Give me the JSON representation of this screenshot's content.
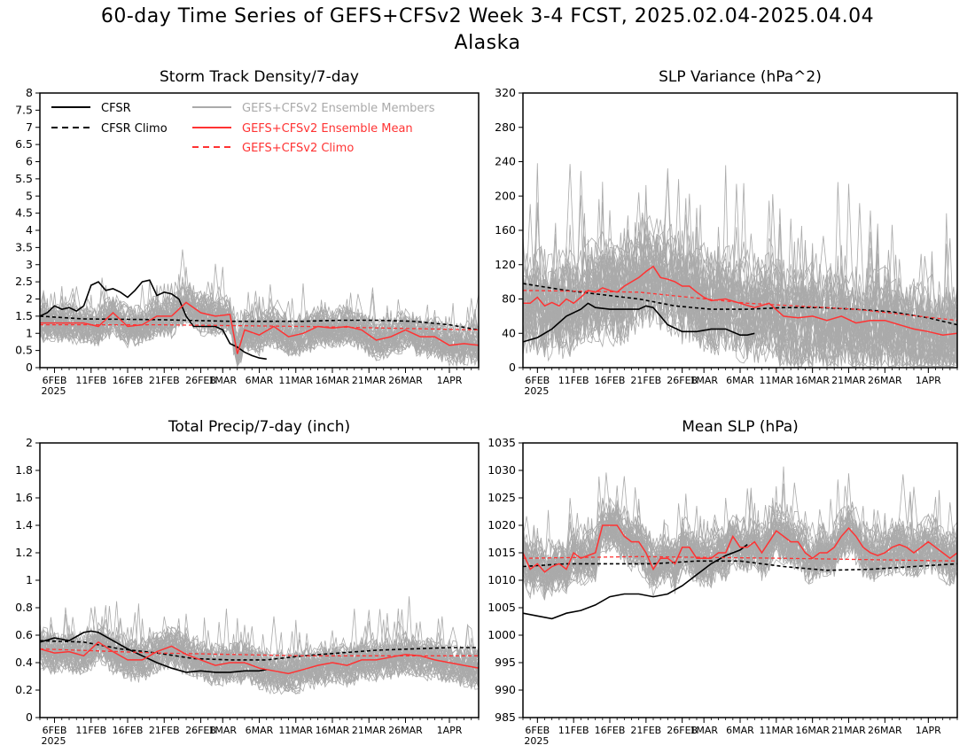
{
  "title_line1": "60-day Time Series of GEFS+CFSv2 Week 3-4 FCST, 2025.02.04-2025.04.04",
  "title_line2": "Alaska",
  "colors": {
    "cfsr": "#000000",
    "members": "#aaaaaa",
    "mean": "#ff3333",
    "gefs_climo": "#ff3333"
  },
  "legend": {
    "cfsr": "CFSR",
    "cfsr_climo": "CFSR Climo",
    "members": "GEFS+CFSv2 Ensemble Members",
    "mean": "GEFS+CFSv2 Ensemble Mean",
    "gefs_climo": "GEFS+CFSv2 Climo"
  },
  "chart_data": [
    {
      "type": "line",
      "title": "Storm Track Density/7-day",
      "ylim": [
        0,
        8
      ],
      "yticks": [
        "0",
        "0.5",
        "1",
        "1.5",
        "2",
        "2.5",
        "3",
        "3.5",
        "4",
        "4.5",
        "5",
        "5.5",
        "6",
        "6.5",
        "7",
        "7.5",
        "8"
      ],
      "xlim": [
        4,
        64
      ],
      "x_start_date": "2025-02-04",
      "xticks": [
        {
          "day": 6,
          "label": "6FEB"
        },
        {
          "day": 11,
          "label": "11FEB"
        },
        {
          "day": 16,
          "label": "16FEB"
        },
        {
          "day": 21,
          "label": "21FEB"
        },
        {
          "day": 26,
          "label": "26FEB"
        },
        {
          "day": 29,
          "label": "1MAR"
        },
        {
          "day": 34,
          "label": "6MAR"
        },
        {
          "day": 39,
          "label": "11MAR"
        },
        {
          "day": 44,
          "label": "16MAR"
        },
        {
          "day": 49,
          "label": "21MAR"
        },
        {
          "day": 54,
          "label": "26MAR"
        },
        {
          "day": 60,
          "label": "1APR"
        }
      ],
      "year_label": "2025",
      "series": [
        {
          "name": "CFSR",
          "x": [
            4,
            5,
            6,
            7,
            8,
            9,
            10,
            11,
            12,
            13,
            14,
            15,
            16,
            17,
            18,
            19,
            20,
            21,
            22,
            23,
            24,
            25,
            26,
            27,
            28,
            29,
            30,
            31,
            32,
            33,
            34,
            35
          ],
          "values": [
            1.5,
            1.6,
            1.8,
            1.7,
            1.75,
            1.65,
            1.8,
            2.4,
            2.5,
            2.25,
            2.3,
            2.2,
            2.05,
            2.25,
            2.5,
            2.55,
            2.1,
            2.2,
            2.15,
            2.0,
            1.5,
            1.2,
            1.2,
            1.2,
            1.2,
            1.1,
            0.7,
            0.6,
            0.45,
            0.35,
            0.28,
            0.25
          ]
        },
        {
          "name": "CFSR Climo",
          "x": [
            4,
            10,
            20,
            30,
            40,
            45,
            50,
            55,
            60,
            64
          ],
          "values": [
            1.5,
            1.42,
            1.4,
            1.35,
            1.35,
            1.38,
            1.38,
            1.35,
            1.25,
            1.1
          ]
        },
        {
          "name": "GEFS+CFSv2 Ensemble Mean",
          "x": [
            4,
            6,
            8,
            10,
            12,
            14,
            16,
            18,
            20,
            22,
            24,
            26,
            28,
            30,
            31,
            32,
            34,
            36,
            38,
            40,
            42,
            44,
            46,
            48,
            50,
            52,
            54,
            56,
            58,
            60,
            62,
            64
          ],
          "values": [
            1.3,
            1.3,
            1.3,
            1.3,
            1.2,
            1.6,
            1.2,
            1.25,
            1.5,
            1.5,
            1.9,
            1.6,
            1.5,
            1.55,
            0.4,
            1.1,
            0.95,
            1.2,
            0.9,
            1.0,
            1.2,
            1.15,
            1.2,
            1.1,
            0.8,
            0.9,
            1.1,
            0.9,
            0.9,
            0.65,
            0.7,
            0.65
          ]
        },
        {
          "name": "GEFS+CFSv2 Climo",
          "x": [
            4,
            20,
            40,
            64
          ],
          "values": [
            1.25,
            1.25,
            1.2,
            1.1
          ]
        }
      ]
    },
    {
      "type": "line",
      "title": "SLP Variance (hPa^2)",
      "ylim": [
        0,
        320
      ],
      "yticks": [
        "0",
        "40",
        "80",
        "120",
        "160",
        "200",
        "240",
        "280",
        "320"
      ],
      "xlim": [
        4,
        64
      ],
      "x_start_date": "2025-02-04",
      "xticks": [
        {
          "day": 6,
          "label": "6FEB"
        },
        {
          "day": 11,
          "label": "11FEB"
        },
        {
          "day": 16,
          "label": "16FEB"
        },
        {
          "day": 21,
          "label": "21FEB"
        },
        {
          "day": 26,
          "label": "26FEB"
        },
        {
          "day": 29,
          "label": "1MAR"
        },
        {
          "day": 34,
          "label": "6MAR"
        },
        {
          "day": 39,
          "label": "11MAR"
        },
        {
          "day": 44,
          "label": "16MAR"
        },
        {
          "day": 49,
          "label": "21MAR"
        },
        {
          "day": 54,
          "label": "26MAR"
        },
        {
          "day": 60,
          "label": "1APR"
        }
      ],
      "year_label": "2025",
      "series": [
        {
          "name": "CFSR",
          "x": [
            4,
            6,
            8,
            10,
            12,
            13,
            14,
            16,
            18,
            20,
            21,
            22,
            23,
            24,
            26,
            28,
            30,
            32,
            34,
            35,
            36
          ],
          "values": [
            30,
            35,
            45,
            60,
            68,
            75,
            70,
            68,
            68,
            68,
            72,
            70,
            60,
            50,
            42,
            42,
            45,
            45,
            38,
            38,
            40
          ]
        },
        {
          "name": "CFSR Climo",
          "x": [
            4,
            10,
            15,
            20,
            25,
            30,
            35,
            40,
            45,
            50,
            55,
            60,
            64
          ],
          "values": [
            98,
            90,
            85,
            80,
            72,
            68,
            68,
            70,
            70,
            68,
            65,
            58,
            50
          ]
        },
        {
          "name": "GEFS+CFSv2 Ensemble Mean",
          "x": [
            4,
            5,
            6,
            7,
            8,
            9,
            10,
            11,
            12,
            13,
            14,
            15,
            16,
            17,
            18,
            19,
            20,
            21,
            22,
            23,
            24,
            25,
            26,
            27,
            28,
            29,
            30,
            32,
            34,
            36,
            38,
            40,
            42,
            44,
            46,
            48,
            50,
            52,
            54,
            56,
            58,
            60,
            62,
            64
          ],
          "values": [
            75,
            75,
            82,
            72,
            76,
            72,
            80,
            75,
            82,
            90,
            88,
            93,
            90,
            88,
            95,
            100,
            105,
            112,
            118,
            105,
            103,
            100,
            95,
            95,
            88,
            82,
            78,
            80,
            75,
            70,
            75,
            60,
            58,
            60,
            55,
            60,
            52,
            55,
            55,
            50,
            45,
            42,
            38,
            40
          ]
        },
        {
          "name": "GEFS+CFSv2 Climo",
          "x": [
            4,
            20,
            35,
            50,
            64
          ],
          "values": [
            90,
            88,
            75,
            68,
            55
          ]
        }
      ]
    },
    {
      "type": "line",
      "title": "Total Precip/7-day (inch)",
      "ylim": [
        0,
        2
      ],
      "yticks": [
        "0",
        "0.2",
        "0.4",
        "0.6",
        "0.8",
        "1",
        "1.2",
        "1.4",
        "1.6",
        "1.8",
        "2"
      ],
      "xlim": [
        4,
        64
      ],
      "x_start_date": "2025-02-04",
      "xticks": [
        {
          "day": 6,
          "label": "6FEB"
        },
        {
          "day": 11,
          "label": "11FEB"
        },
        {
          "day": 16,
          "label": "16FEB"
        },
        {
          "day": 21,
          "label": "21FEB"
        },
        {
          "day": 26,
          "label": "26FEB"
        },
        {
          "day": 29,
          "label": "1MAR"
        },
        {
          "day": 34,
          "label": "6MAR"
        },
        {
          "day": 39,
          "label": "11MAR"
        },
        {
          "day": 44,
          "label": "16MAR"
        },
        {
          "day": 49,
          "label": "21MAR"
        },
        {
          "day": 54,
          "label": "26MAR"
        },
        {
          "day": 60,
          "label": "1APR"
        }
      ],
      "year_label": "2025",
      "series": [
        {
          "name": "CFSR",
          "x": [
            4,
            6,
            8,
            10,
            11,
            12,
            14,
            16,
            18,
            20,
            22,
            24,
            26,
            28,
            30,
            32,
            34,
            35
          ],
          "values": [
            0.55,
            0.58,
            0.56,
            0.62,
            0.63,
            0.62,
            0.56,
            0.5,
            0.45,
            0.4,
            0.36,
            0.33,
            0.34,
            0.33,
            0.33,
            0.34,
            0.34,
            0.35
          ]
        },
        {
          "name": "CFSR Climo",
          "x": [
            4,
            10,
            15,
            20,
            25,
            30,
            35,
            40,
            45,
            50,
            55,
            60,
            64
          ],
          "values": [
            0.56,
            0.55,
            0.5,
            0.47,
            0.43,
            0.42,
            0.42,
            0.45,
            0.47,
            0.49,
            0.5,
            0.51,
            0.51
          ]
        },
        {
          "name": "GEFS+CFSv2 Ensemble Mean",
          "x": [
            4,
            6,
            8,
            10,
            12,
            14,
            16,
            18,
            20,
            22,
            24,
            26,
            28,
            30,
            32,
            34,
            36,
            38,
            40,
            42,
            44,
            46,
            48,
            50,
            52,
            54,
            56,
            58,
            60,
            62,
            64
          ],
          "values": [
            0.5,
            0.47,
            0.48,
            0.45,
            0.55,
            0.48,
            0.42,
            0.42,
            0.48,
            0.52,
            0.46,
            0.42,
            0.38,
            0.4,
            0.4,
            0.36,
            0.34,
            0.32,
            0.35,
            0.38,
            0.4,
            0.38,
            0.42,
            0.42,
            0.44,
            0.46,
            0.45,
            0.42,
            0.4,
            0.38,
            0.36
          ]
        },
        {
          "name": "GEFS+CFSv2 Climo",
          "x": [
            4,
            20,
            40,
            64
          ],
          "values": [
            0.5,
            0.47,
            0.45,
            0.45
          ]
        }
      ]
    },
    {
      "type": "line",
      "title": "Mean SLP (hPa)",
      "ylim": [
        985,
        1035
      ],
      "yticks": [
        "985",
        "990",
        "995",
        "1000",
        "1005",
        "1010",
        "1015",
        "1020",
        "1025",
        "1030",
        "1035"
      ],
      "xlim": [
        4,
        64
      ],
      "x_start_date": "2025-02-04",
      "xticks": [
        {
          "day": 6,
          "label": "6FEB"
        },
        {
          "day": 11,
          "label": "11FEB"
        },
        {
          "day": 16,
          "label": "16FEB"
        },
        {
          "day": 21,
          "label": "21FEB"
        },
        {
          "day": 26,
          "label": "26FEB"
        },
        {
          "day": 29,
          "label": "1MAR"
        },
        {
          "day": 34,
          "label": "6MAR"
        },
        {
          "day": 39,
          "label": "11MAR"
        },
        {
          "day": 44,
          "label": "16MAR"
        },
        {
          "day": 49,
          "label": "21MAR"
        },
        {
          "day": 54,
          "label": "26MAR"
        },
        {
          "day": 60,
          "label": "1APR"
        }
      ],
      "year_label": "2025",
      "series": [
        {
          "name": "CFSR",
          "x": [
            4,
            6,
            8,
            10,
            12,
            14,
            16,
            18,
            20,
            22,
            24,
            26,
            28,
            30,
            32,
            34,
            35
          ],
          "values": [
            1004,
            1003.5,
            1003,
            1004,
            1004.5,
            1005.5,
            1007,
            1007.5,
            1007.5,
            1007,
            1007.5,
            1009,
            1011,
            1013,
            1014.5,
            1015.5,
            1016.5
          ]
        },
        {
          "name": "CFSR Climo",
          "x": [
            4,
            10,
            16,
            22,
            28,
            34,
            40,
            46,
            52,
            58,
            64
          ],
          "values": [
            1012.5,
            1013,
            1013,
            1013,
            1013.5,
            1013.5,
            1012.5,
            1011.8,
            1012,
            1012.5,
            1013
          ]
        },
        {
          "name": "GEFS+CFSv2 Ensemble Mean",
          "x": [
            4,
            5,
            6,
            7,
            8,
            9,
            10,
            11,
            12,
            13,
            14,
            15,
            16,
            17,
            18,
            19,
            20,
            21,
            22,
            23,
            24,
            25,
            26,
            27,
            28,
            29,
            30,
            31,
            32,
            33,
            34,
            35,
            36,
            37,
            38,
            39,
            40,
            41,
            42,
            43,
            44,
            45,
            46,
            47,
            48,
            49,
            50,
            51,
            52,
            53,
            54,
            55,
            56,
            57,
            58,
            59,
            60,
            61,
            62,
            63,
            64
          ],
          "values": [
            1015,
            1012,
            1013,
            1011.5,
            1012.5,
            1013,
            1012,
            1015,
            1014,
            1014.5,
            1015,
            1020,
            1020,
            1020,
            1018,
            1017,
            1017,
            1015,
            1012,
            1014,
            1014,
            1013,
            1016,
            1016,
            1014,
            1014,
            1014,
            1015,
            1015,
            1018,
            1016,
            1016,
            1017,
            1015,
            1017,
            1019,
            1018,
            1017,
            1017,
            1015,
            1014,
            1015,
            1015,
            1016,
            1018,
            1019.5,
            1018,
            1016,
            1015,
            1014.5,
            1015,
            1016,
            1016.5,
            1016,
            1015,
            1016,
            1017,
            1016,
            1015,
            1014,
            1015
          ]
        },
        {
          "name": "GEFS+CFSv2 Climo",
          "x": [
            4,
            20,
            40,
            64
          ],
          "values": [
            1014,
            1014.3,
            1014,
            1013.5
          ]
        }
      ]
    }
  ]
}
